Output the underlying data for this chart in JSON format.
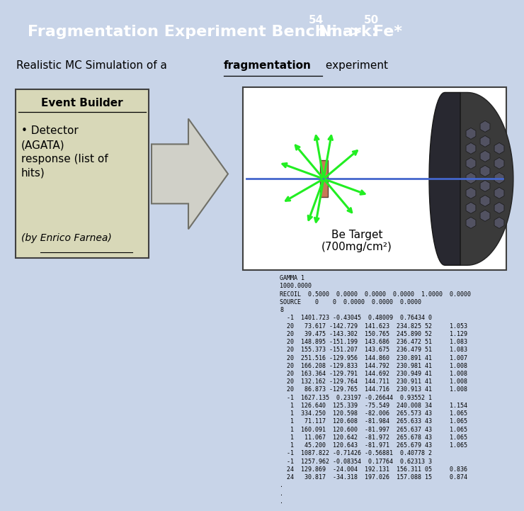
{
  "title_main": "Fragmentation Experiment Benchmark: ",
  "title_sup1": "54",
  "title_ni": "Ni -> ",
  "title_sup2": "50",
  "title_fe": "Fe*",
  "subtitle_pre": "Realistic MC Simulation of a ",
  "subtitle_bold": "fragmentation",
  "subtitle_post": " experiment",
  "bg_color": "#c8d4e8",
  "title_bg": "#6678b8",
  "title_color": "white",
  "box_color": "#d8d8b8",
  "box_border": "#404040",
  "event_builder_title": "Event Builder",
  "bullet_text": "• Detector\n(AGATA)\nresponse (list of\nhits)",
  "italic_text": "(by Enrico Farnea)",
  "be_target_text": "Be Target\n(700mg/cm²)",
  "data_text": "GAMMA 1\n1000.0000\nRECOIL  0.5000  0.0000  0.0000  0.0000  1.0000  0.0000\nSOURCE    0    0  0.0000  0.0000  0.0000\n8\n  -1  1401.723 -0.43045  0.48009  0.76434 0\n  20   73.617 -142.729  141.623  234.825 52     1.053\n  20   39.475 -143.302  150.765  245.890 52     1.129\n  20  148.895 -151.199  143.686  236.472 51     1.083\n  20  155.373 -151.207  143.675  236.479 51     1.083\n  20  251.516 -129.956  144.860  230.891 41     1.007\n  20  166.208 -129.833  144.792  230.981 41     1.008\n  20  163.364 -129.791  144.692  230.949 41     1.008\n  20  132.162 -129.764  144.711  230.911 41     1.008\n  20   86.873 -129.765  144.716  230.913 41     1.008\n  -1  1627.135  0.23197 -0.26644  0.93552 1\n   1  126.640  125.339  -75.549  240.008 34     1.154\n   1  334.250  120.598  -82.006  265.573 43     1.065\n   1   71.117  120.608  -81.984  265.633 43     1.065\n   1  160.091  120.600  -81.997  265.637 43     1.065\n   1   11.067  120.642  -81.972  265.678 43     1.065\n   1   45.200  120.643  -81.971  265.679 43     1.065\n  -1  1087.822 -0.71426 -0.56881  0.40778 2\n  -1  1257.962 -0.08354  0.17764  0.62313 3\n  24  129.869  -24.004  192.131  156.311 05     0.836\n  24   30.817  -34.318  197.026  157.088 15     0.874\n.\n.\n."
}
